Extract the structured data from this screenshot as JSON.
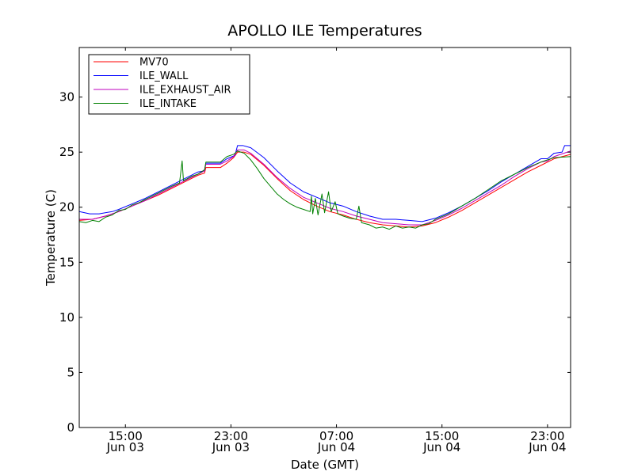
{
  "chart_data": {
    "type": "line",
    "title": "APOLLO ILE Temperatures",
    "xlabel": "Date (GMT)",
    "ylabel": "Temperature (C)",
    "ylim": [
      0,
      34.5
    ],
    "xlim_hours": [
      0,
      37.25
    ],
    "x_unit": "hours since Jun 03 11:30 GMT",
    "yticks": [
      0,
      5,
      10,
      15,
      20,
      25,
      30
    ],
    "xticks": [
      {
        "hours": 3.5,
        "time": "15:00",
        "date": "Jun 03"
      },
      {
        "hours": 11.5,
        "time": "23:00",
        "date": "Jun 03"
      },
      {
        "hours": 19.5,
        "time": "07:00",
        "date": "Jun 04"
      },
      {
        "hours": 27.5,
        "time": "15:00",
        "date": "Jun 04"
      },
      {
        "hours": 35.5,
        "time": "23:00",
        "date": "Jun 04"
      }
    ],
    "legend_position": "top-left",
    "series": [
      {
        "name": "MV70",
        "color": "#ff0000",
        "points": [
          [
            0,
            18.8
          ],
          [
            1,
            18.9
          ],
          [
            2,
            19.2
          ],
          [
            3,
            19.6
          ],
          [
            4,
            20.1
          ],
          [
            5,
            20.6
          ],
          [
            6,
            21.1
          ],
          [
            7,
            21.7
          ],
          [
            8,
            22.3
          ],
          [
            9,
            22.9
          ],
          [
            9.5,
            23.1
          ],
          [
            9.6,
            23.6
          ],
          [
            10.7,
            23.6
          ],
          [
            11.2,
            24.0
          ],
          [
            11.7,
            24.5
          ],
          [
            12,
            25.0
          ],
          [
            12.5,
            25.0
          ],
          [
            13,
            24.8
          ],
          [
            14,
            23.8
          ],
          [
            15,
            22.6
          ],
          [
            16,
            21.5
          ],
          [
            17,
            20.7
          ],
          [
            18,
            20.1
          ],
          [
            19,
            19.6
          ],
          [
            20,
            19.3
          ],
          [
            21,
            18.9
          ],
          [
            22,
            18.6
          ],
          [
            23,
            18.4
          ],
          [
            24,
            18.3
          ],
          [
            25,
            18.2
          ],
          [
            26,
            18.3
          ],
          [
            27,
            18.6
          ],
          [
            28,
            19.1
          ],
          [
            29,
            19.7
          ],
          [
            30,
            20.4
          ],
          [
            31,
            21.1
          ],
          [
            32,
            21.8
          ],
          [
            33,
            22.5
          ],
          [
            34,
            23.2
          ],
          [
            35,
            23.8
          ],
          [
            36,
            24.4
          ],
          [
            37.25,
            24.8
          ]
        ]
      },
      {
        "name": "ILE_WALL",
        "color": "#0000ff",
        "points": [
          [
            0,
            19.6
          ],
          [
            0.8,
            19.4
          ],
          [
            1.5,
            19.4
          ],
          [
            2.5,
            19.6
          ],
          [
            3,
            19.8
          ],
          [
            4,
            20.3
          ],
          [
            5,
            20.8
          ],
          [
            6,
            21.4
          ],
          [
            7,
            22.0
          ],
          [
            8,
            22.6
          ],
          [
            9,
            23.2
          ],
          [
            9.5,
            23.3
          ],
          [
            9.6,
            24.0
          ],
          [
            10.7,
            24.0
          ],
          [
            11.2,
            24.4
          ],
          [
            11.8,
            24.7
          ],
          [
            12,
            25.6
          ],
          [
            12.4,
            25.6
          ],
          [
            13,
            25.4
          ],
          [
            14,
            24.5
          ],
          [
            15,
            23.3
          ],
          [
            16,
            22.2
          ],
          [
            17,
            21.4
          ],
          [
            18,
            20.9
          ],
          [
            19,
            20.4
          ],
          [
            20,
            20.1
          ],
          [
            21,
            19.6
          ],
          [
            22,
            19.2
          ],
          [
            23,
            18.9
          ],
          [
            24,
            18.9
          ],
          [
            25,
            18.8
          ],
          [
            26,
            18.7
          ],
          [
            27,
            19.0
          ],
          [
            28,
            19.5
          ],
          [
            29,
            20.1
          ],
          [
            30,
            20.8
          ],
          [
            31,
            21.5
          ],
          [
            32,
            22.3
          ],
          [
            33,
            23.0
          ],
          [
            34,
            23.7
          ],
          [
            35,
            24.4
          ],
          [
            35.5,
            24.4
          ],
          [
            36,
            24.9
          ],
          [
            36.6,
            25.0
          ],
          [
            36.8,
            25.6
          ],
          [
            37.25,
            25.6
          ]
        ]
      },
      {
        "name": "ILE_EXHAUST_AIR",
        "color": "#bf00bf",
        "points": [
          [
            0,
            18.9
          ],
          [
            1,
            18.9
          ],
          [
            2,
            19.2
          ],
          [
            3,
            19.6
          ],
          [
            4,
            20.1
          ],
          [
            5,
            20.6
          ],
          [
            6,
            21.2
          ],
          [
            7,
            21.8
          ],
          [
            8,
            22.4
          ],
          [
            9,
            23.0
          ],
          [
            9.5,
            23.3
          ],
          [
            9.6,
            23.9
          ],
          [
            10.7,
            23.9
          ],
          [
            11.2,
            24.2
          ],
          [
            11.7,
            24.6
          ],
          [
            12,
            25.2
          ],
          [
            12.5,
            25.2
          ],
          [
            13,
            24.9
          ],
          [
            14,
            23.9
          ],
          [
            15,
            22.7
          ],
          [
            16,
            21.7
          ],
          [
            17,
            20.9
          ],
          [
            18,
            20.4
          ],
          [
            19,
            19.9
          ],
          [
            20,
            19.6
          ],
          [
            21,
            19.2
          ],
          [
            22,
            18.9
          ],
          [
            23,
            18.6
          ],
          [
            24,
            18.5
          ],
          [
            25,
            18.4
          ],
          [
            26,
            18.4
          ],
          [
            27,
            18.8
          ],
          [
            28,
            19.3
          ],
          [
            29,
            19.9
          ],
          [
            30,
            20.6
          ],
          [
            31,
            21.3
          ],
          [
            32,
            22.0
          ],
          [
            33,
            22.8
          ],
          [
            34,
            23.5
          ],
          [
            35,
            24.1
          ],
          [
            35.5,
            24.2
          ],
          [
            36,
            24.6
          ],
          [
            37.25,
            25.1
          ]
        ]
      },
      {
        "name": "ILE_INTAKE",
        "color": "#008000",
        "points": [
          [
            0,
            18.7
          ],
          [
            0.5,
            18.6
          ],
          [
            1,
            18.8
          ],
          [
            1.5,
            18.7
          ],
          [
            2,
            19.1
          ],
          [
            2.5,
            19.3
          ],
          [
            3,
            19.7
          ],
          [
            3.5,
            19.8
          ],
          [
            4,
            20.2
          ],
          [
            4.5,
            20.4
          ],
          [
            5,
            20.7
          ],
          [
            5.5,
            21.0
          ],
          [
            6,
            21.3
          ],
          [
            6.5,
            21.6
          ],
          [
            7,
            21.9
          ],
          [
            7.6,
            22.2
          ],
          [
            7.8,
            24.2
          ],
          [
            7.9,
            22.4
          ],
          [
            8.5,
            22.8
          ],
          [
            9,
            23.0
          ],
          [
            9.5,
            23.4
          ],
          [
            9.6,
            24.1
          ],
          [
            10.7,
            24.1
          ],
          [
            11.2,
            24.6
          ],
          [
            11.7,
            24.8
          ],
          [
            12,
            25.1
          ],
          [
            12.5,
            24.9
          ],
          [
            13,
            24.3
          ],
          [
            13.5,
            23.5
          ],
          [
            14,
            22.6
          ],
          [
            14.5,
            21.9
          ],
          [
            15,
            21.2
          ],
          [
            15.5,
            20.7
          ],
          [
            16,
            20.3
          ],
          [
            16.5,
            20.0
          ],
          [
            17,
            19.8
          ],
          [
            17.5,
            19.6
          ],
          [
            17.6,
            21.0
          ],
          [
            17.7,
            19.4
          ],
          [
            17.9,
            20.8
          ],
          [
            18.1,
            19.3
          ],
          [
            18.4,
            21.2
          ],
          [
            18.6,
            19.5
          ],
          [
            18.9,
            21.4
          ],
          [
            19.1,
            19.6
          ],
          [
            19.4,
            20.5
          ],
          [
            19.6,
            19.4
          ],
          [
            20,
            19.2
          ],
          [
            20.5,
            19.0
          ],
          [
            21,
            18.9
          ],
          [
            21.2,
            20.1
          ],
          [
            21.4,
            18.6
          ],
          [
            22,
            18.4
          ],
          [
            22.5,
            18.1
          ],
          [
            23,
            18.2
          ],
          [
            23.5,
            18.0
          ],
          [
            24,
            18.3
          ],
          [
            24.5,
            18.1
          ],
          [
            25,
            18.2
          ],
          [
            25.5,
            18.1
          ],
          [
            26,
            18.4
          ],
          [
            26.5,
            18.5
          ],
          [
            27,
            18.9
          ],
          [
            28,
            19.4
          ],
          [
            29,
            20.1
          ],
          [
            30,
            20.8
          ],
          [
            31,
            21.6
          ],
          [
            32,
            22.4
          ],
          [
            33,
            23.0
          ],
          [
            34,
            23.6
          ],
          [
            35,
            24.1
          ],
          [
            36,
            24.5
          ],
          [
            37.25,
            24.6
          ]
        ]
      }
    ]
  }
}
